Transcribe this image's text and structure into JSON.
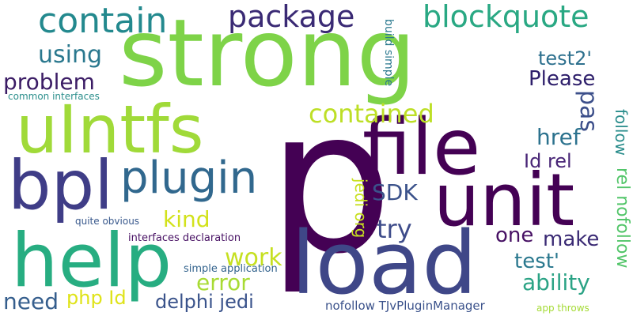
{
  "words": [
    {
      "text": "strong",
      "color": "#7ed348"
    },
    {
      "text": "p",
      "color": "#440154"
    },
    {
      "text": "uIntfs",
      "color": "#a0da39"
    },
    {
      "text": "file",
      "color": "#440154"
    },
    {
      "text": "unit",
      "color": "#440154"
    },
    {
      "text": "load",
      "color": "#3f4788"
    },
    {
      "text": "help",
      "color": "#27ad81"
    },
    {
      "text": "bpl",
      "color": "#3f3d87"
    },
    {
      "text": "plugin",
      "color": "#31688e"
    },
    {
      "text": "contain",
      "color": "#23898e"
    },
    {
      "text": "package",
      "color": "#3a2a74"
    },
    {
      "text": "blockquote",
      "color": "#29a883"
    },
    {
      "text": "using",
      "color": "#2a788e"
    },
    {
      "text": "problem",
      "color": "#3b1c65"
    },
    {
      "text": "common interfaces",
      "color": "#2c8f8c"
    },
    {
      "text": "test2'",
      "color": "#2d708e"
    },
    {
      "text": "Please",
      "color": "#2e1f6b"
    },
    {
      "text": "contained",
      "color": "#bddf26"
    },
    {
      "text": "pas",
      "color": "#3c4f8a"
    },
    {
      "text": "follow",
      "color": "#2a8d8c"
    },
    {
      "text": "href",
      "color": "#2c728e"
    },
    {
      "text": "Id rel",
      "color": "#482576"
    },
    {
      "text": "rel nofollow",
      "color": "#52c569"
    },
    {
      "text": "SDK",
      "color": "#3b528b"
    },
    {
      "text": "try",
      "color": "#3e4c8a"
    },
    {
      "text": "kind",
      "color": "#d2e21b"
    },
    {
      "text": "one",
      "color": "#471164"
    },
    {
      "text": "make",
      "color": "#3a2a74"
    },
    {
      "text": "work",
      "color": "#c6e021"
    },
    {
      "text": "test'",
      "color": "#2a788e"
    },
    {
      "text": "error",
      "color": "#a8db34"
    },
    {
      "text": "ability",
      "color": "#2ba385"
    },
    {
      "text": "need",
      "color": "#355e8d"
    },
    {
      "text": "php Id",
      "color": "#dfe318"
    },
    {
      "text": "delphi jedi",
      "color": "#3a538b"
    },
    {
      "text": "jedi org",
      "color": "#c8e020"
    },
    {
      "text": "build simple",
      "color": "#2a788e"
    },
    {
      "text": "quite obvious",
      "color": "#38588c"
    },
    {
      "text": "interfaces declaration",
      "color": "#471063"
    },
    {
      "text": "simple application",
      "color": "#33638d"
    },
    {
      "text": "nofollow TJvPluginManager",
      "color": "#3b528b"
    },
    {
      "text": "app throws",
      "color": "#a5db36"
    }
  ]
}
